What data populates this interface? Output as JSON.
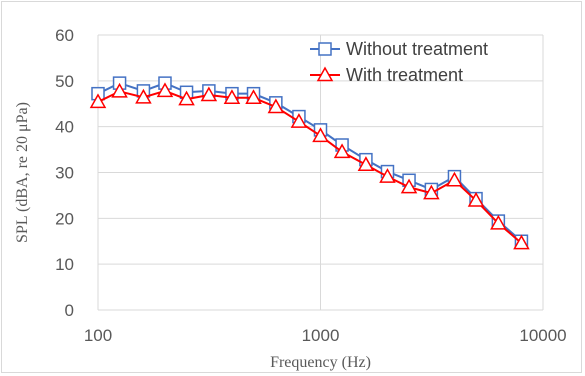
{
  "chart_data": {
    "type": "line",
    "xlabel": "Frequency (Hz)",
    "ylabel": "SPL (dBA, re 20 μPa)",
    "xscale": "log",
    "xlim": [
      100,
      10000
    ],
    "ylim": [
      0,
      60
    ],
    "x_ticks": [
      "100",
      "1000",
      "10000"
    ],
    "y_ticks": [
      "0",
      "10",
      "20",
      "30",
      "40",
      "50",
      "60"
    ],
    "grid": "horizontal",
    "legend_position": "top-right",
    "x": [
      100,
      125,
      160,
      200,
      250,
      315,
      400,
      500,
      630,
      800,
      1000,
      1250,
      1600,
      2000,
      2500,
      3150,
      4000,
      5000,
      6300,
      8000
    ],
    "series": [
      {
        "name": "Without treatment",
        "color": "#4472c4",
        "marker": "square",
        "values": [
          47.2,
          49.5,
          47.8,
          49.5,
          47.5,
          47.8,
          47.2,
          47.2,
          45.2,
          42.2,
          39.3,
          36,
          32.8,
          30.2,
          28.3,
          26.3,
          29.1,
          24.3,
          19.4,
          15
        ]
      },
      {
        "name": "With treatment",
        "color": "#ff0000",
        "marker": "triangle",
        "values": [
          45.4,
          47.7,
          46.4,
          47.8,
          46,
          46.9,
          46.3,
          46.3,
          44.3,
          41.1,
          38,
          34.5,
          31.7,
          29.1,
          26.8,
          25.5,
          28.3,
          23.9,
          18.9,
          14.6
        ]
      }
    ]
  }
}
